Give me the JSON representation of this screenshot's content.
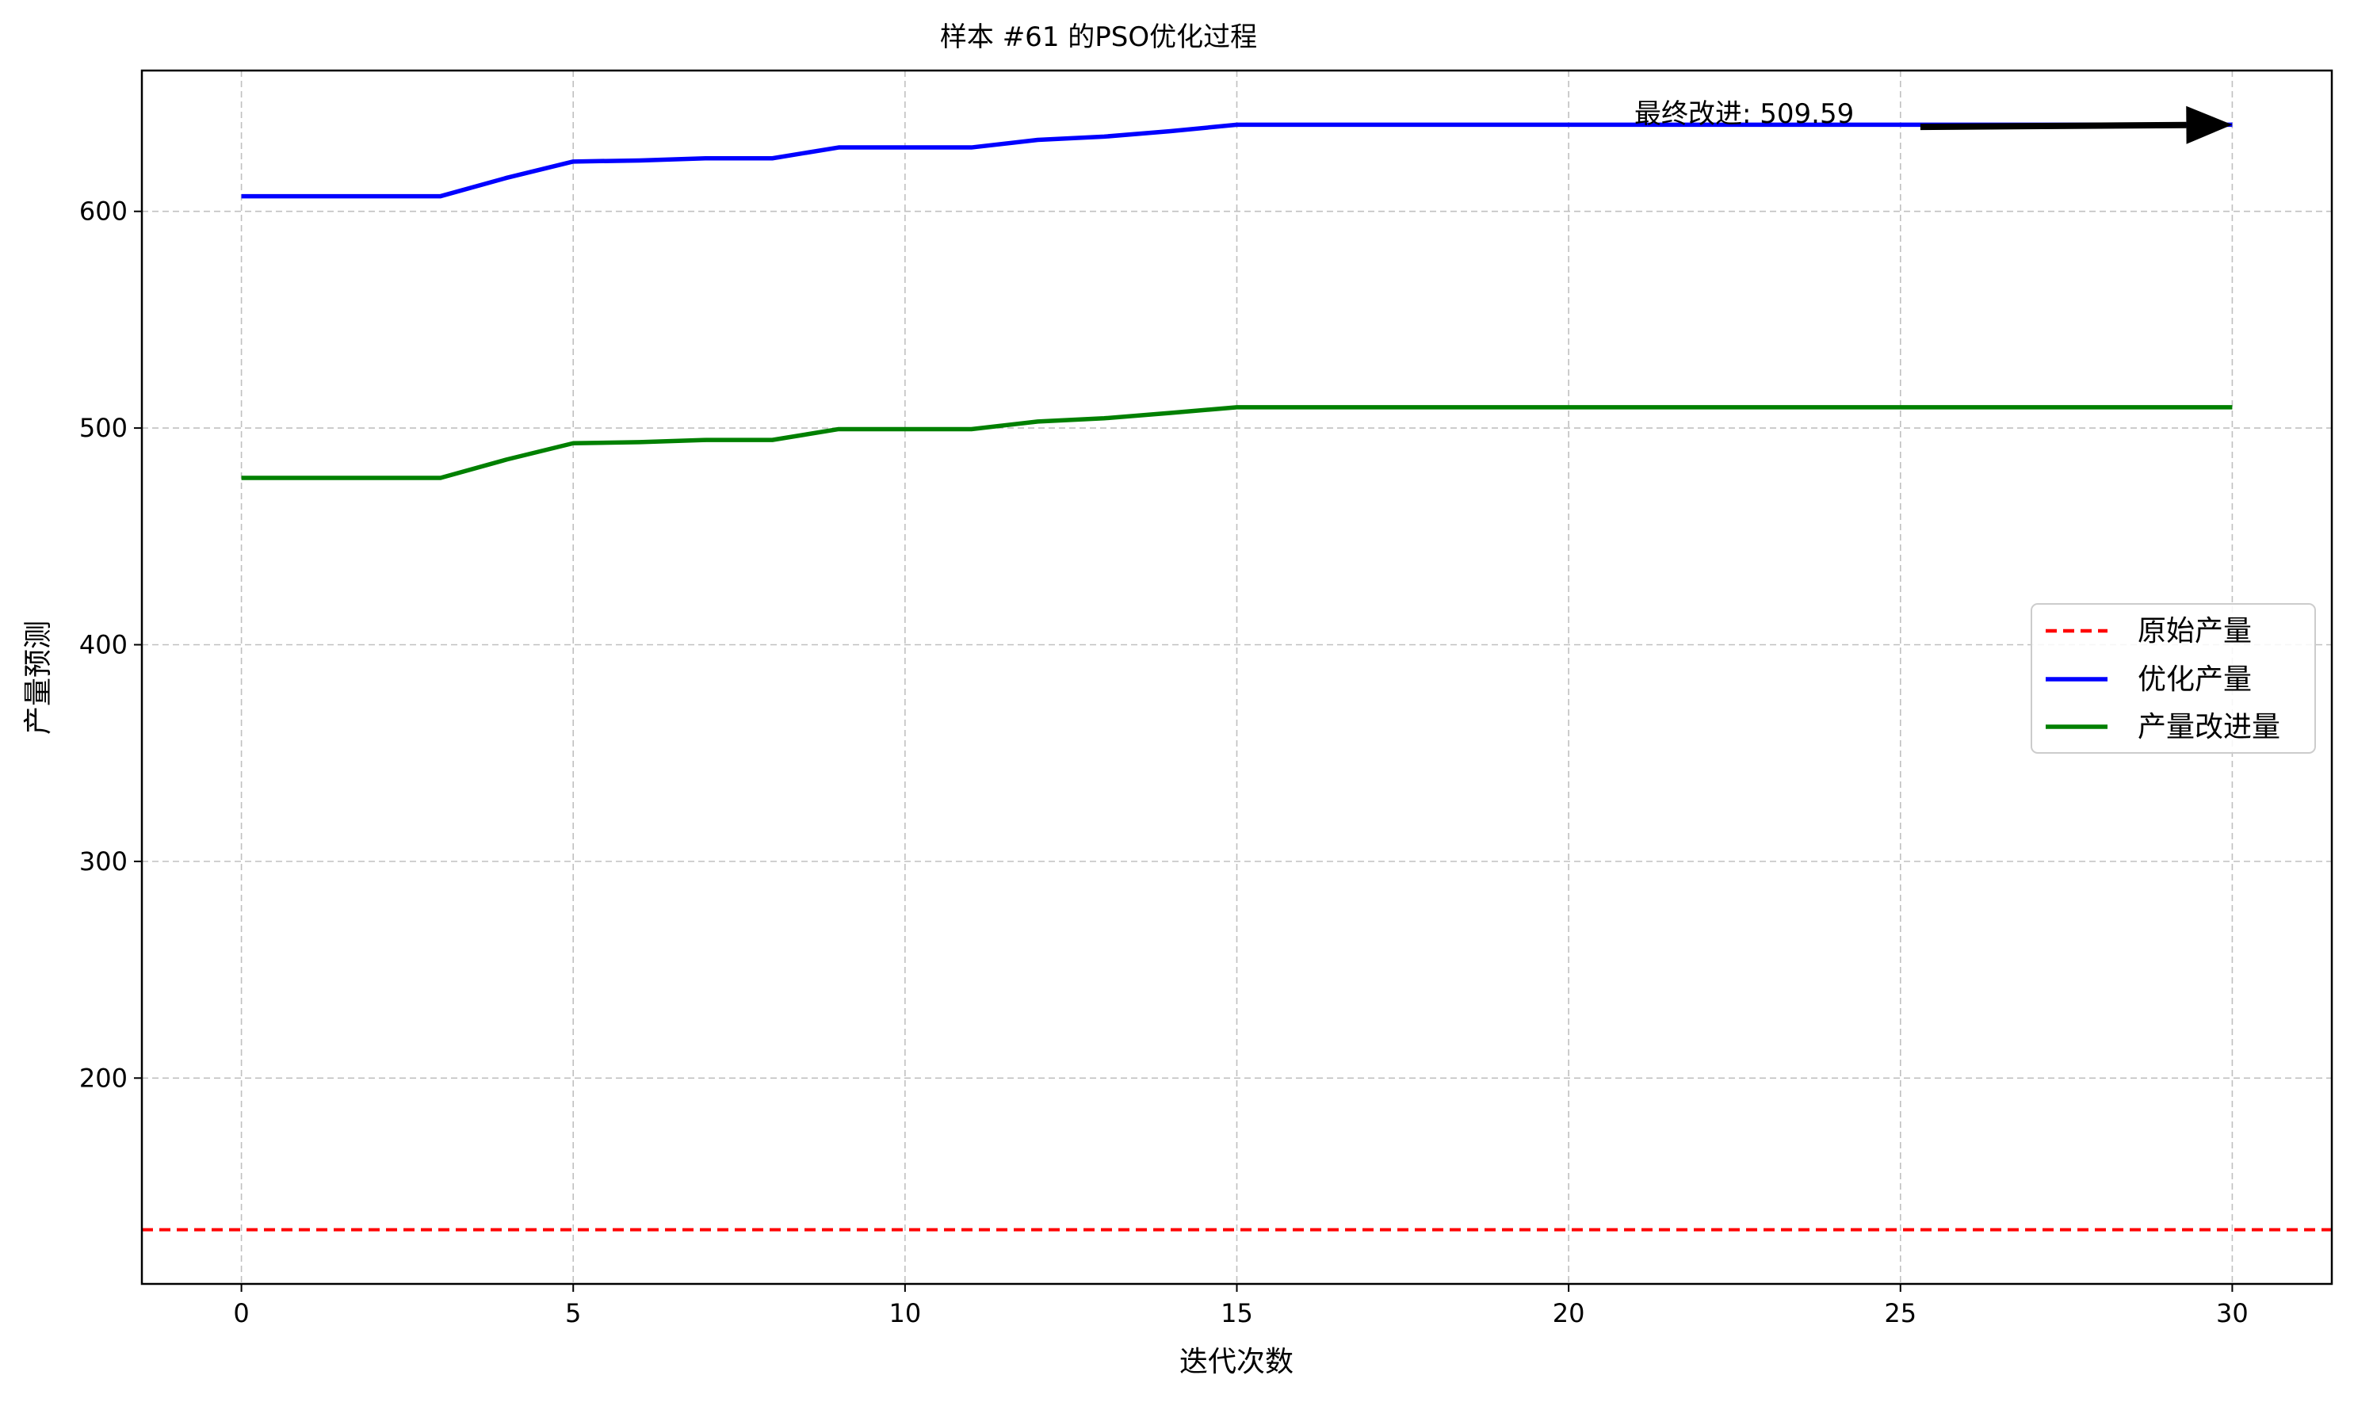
{
  "chart_data": {
    "type": "line",
    "title": "样本 #61 的PSO优化过程",
    "xlabel": "迭代次数",
    "ylabel": "产量预测",
    "xlim": [
      -1.5,
      31.5
    ],
    "ylim": [
      105,
      665
    ],
    "xticks": [
      0,
      5,
      10,
      15,
      20,
      25,
      30
    ],
    "yticks": [
      200,
      300,
      400,
      500,
      600
    ],
    "grid": true,
    "legend_position": "center-right",
    "x": [
      0,
      1,
      2,
      3,
      4,
      5,
      6,
      7,
      8,
      9,
      10,
      11,
      12,
      13,
      14,
      15,
      16,
      17,
      18,
      19,
      20,
      21,
      22,
      23,
      24,
      25,
      26,
      27,
      28,
      29,
      30
    ],
    "series": [
      {
        "name": "原始产量",
        "style": "dashed",
        "color": "#ff0000",
        "constant": 130
      },
      {
        "name": "优化产量",
        "style": "solid",
        "color": "#0000ff",
        "values": [
          607,
          607,
          607,
          607,
          615.5,
          623,
          623.5,
          624.5,
          624.5,
          629.5,
          629.5,
          629.5,
          633,
          634.5,
          637,
          640,
          640,
          640,
          640,
          640,
          640,
          640,
          640,
          640,
          640,
          640,
          640,
          640,
          640,
          640,
          640
        ]
      },
      {
        "name": "产量改进量",
        "style": "solid",
        "color": "#008000",
        "values": [
          477,
          477,
          477,
          477,
          485.5,
          493,
          493.5,
          494.5,
          494.5,
          499.5,
          499.5,
          499.5,
          503,
          504.5,
          507,
          509.6,
          509.6,
          509.6,
          509.6,
          509.6,
          509.6,
          509.6,
          509.6,
          509.6,
          509.6,
          509.6,
          509.6,
          509.6,
          509.6,
          509.6,
          509.6
        ]
      }
    ],
    "annotation": {
      "text": "最终改进: 509.59",
      "arrow_from": [
        25.3,
        639
      ],
      "arrow_to": [
        30,
        640
      ]
    }
  }
}
